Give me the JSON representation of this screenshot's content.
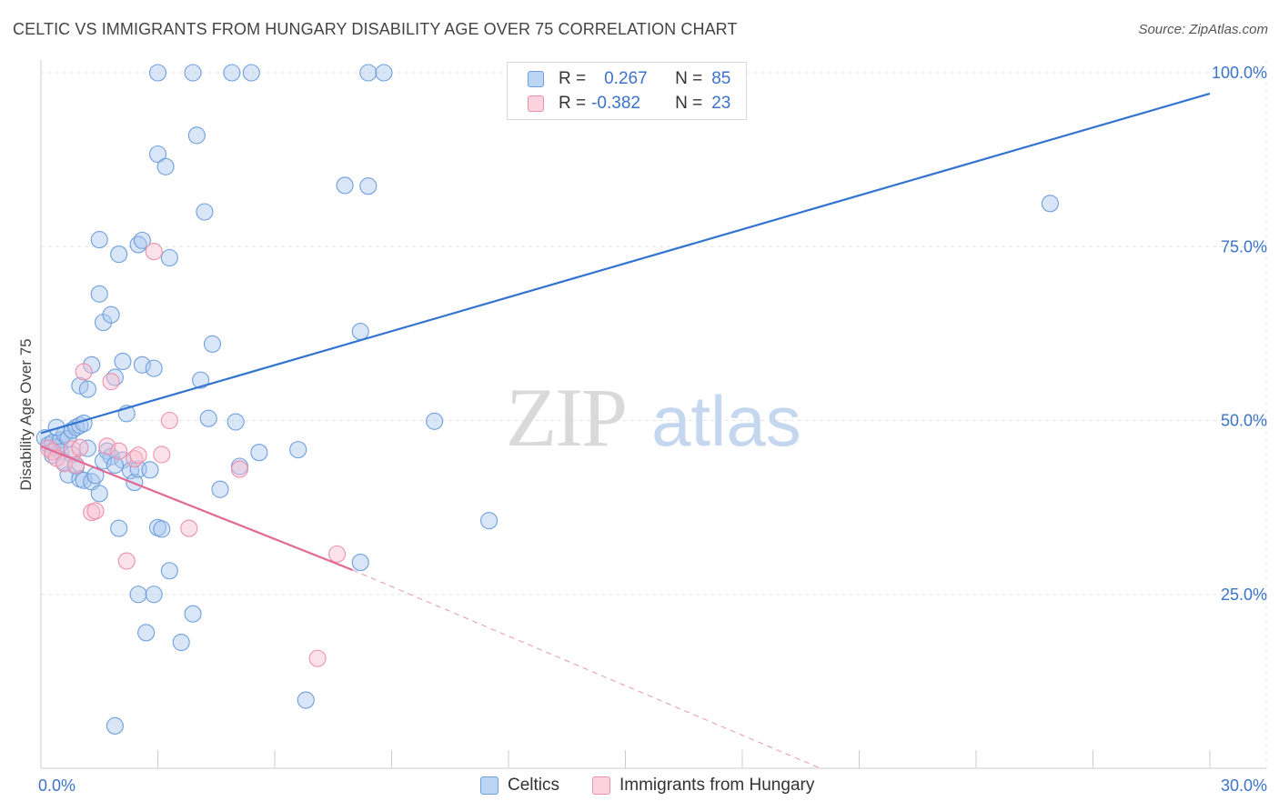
{
  "title": "CELTIC VS IMMIGRANTS FROM HUNGARY DISABILITY AGE OVER 75 CORRELATION CHART",
  "source": "Source: ZipAtlas.com",
  "watermark": {
    "zip": "ZIP",
    "atlas": "atlas"
  },
  "colors": {
    "blue_fill": "#a8c8f0",
    "blue_stroke": "#6f9fdc",
    "blue_line": "#3374d0",
    "pink_fill": "#f7bfd0",
    "pink_stroke": "#ee8fab",
    "pink_line": "#e06a94",
    "grid": "#e4e4e4",
    "tick_label": "#3b73c9"
  },
  "legend": {
    "rows": [
      {
        "r_label": "R =",
        "r_value": "0.267",
        "n_label": "N =",
        "n_value": "85"
      },
      {
        "r_label": "R =",
        "r_value": "-0.382",
        "n_label": "N =",
        "n_value": "23"
      }
    ]
  },
  "bottom_legend": {
    "series1": "Celtics",
    "series2": "Immigrants from Hungary"
  },
  "chart_data": {
    "type": "scatter",
    "title": "CELTIC VS IMMIGRANTS FROM HUNGARY DISABILITY AGE OVER 75 CORRELATION CHART",
    "xlabel": "",
    "ylabel": "Disability Age Over 75",
    "xlim": [
      0,
      30
    ],
    "ylim": [
      0,
      105
    ],
    "x_tick_labels": [
      "0.0%",
      "30.0%"
    ],
    "y_ticks": [
      25,
      50,
      75,
      100
    ],
    "y_tick_labels": [
      "25.0%",
      "50.0%",
      "75.0%",
      "100.0%"
    ],
    "grid": true,
    "series": [
      {
        "name": "Celtics",
        "R": 0.267,
        "N": 85,
        "trend": {
          "x": [
            0,
            30
          ],
          "y": [
            48.2,
            97.0
          ],
          "dashed_extension": false
        },
        "points": [
          [
            0.1,
            47.5
          ],
          [
            0.2,
            46.5
          ],
          [
            0.3,
            46.8
          ],
          [
            0.4,
            46.2
          ],
          [
            0.5,
            47.2
          ],
          [
            0.6,
            48.0
          ],
          [
            0.7,
            47.4
          ],
          [
            0.8,
            48.6
          ],
          [
            0.9,
            49.0
          ],
          [
            1.0,
            49.3
          ],
          [
            1.1,
            49.6
          ],
          [
            0.5,
            45.5
          ],
          [
            0.8,
            45.1
          ],
          [
            0.9,
            43.4
          ],
          [
            0.7,
            42.2
          ],
          [
            1.0,
            41.6
          ],
          [
            1.1,
            41.4
          ],
          [
            1.3,
            41.2
          ],
          [
            1.4,
            42.1
          ],
          [
            1.5,
            39.5
          ],
          [
            1.7,
            45.6
          ],
          [
            1.8,
            44.8
          ],
          [
            2.1,
            44.3
          ],
          [
            2.3,
            42.8
          ],
          [
            2.4,
            41.1
          ],
          [
            2.5,
            43.0
          ],
          [
            1.0,
            55.0
          ],
          [
            1.2,
            54.5
          ],
          [
            1.3,
            58.0
          ],
          [
            1.9,
            56.2
          ],
          [
            2.1,
            58.5
          ],
          [
            2.6,
            58.0
          ],
          [
            2.9,
            57.5
          ],
          [
            2.2,
            51.0
          ],
          [
            1.5,
            68.2
          ],
          [
            1.6,
            64.1
          ],
          [
            1.8,
            65.2
          ],
          [
            1.5,
            76.0
          ],
          [
            2.0,
            73.9
          ],
          [
            2.5,
            75.3
          ],
          [
            2.6,
            75.9
          ],
          [
            3.3,
            73.4
          ],
          [
            3.0,
            88.3
          ],
          [
            3.2,
            86.5
          ],
          [
            4.0,
            91.0
          ],
          [
            4.2,
            80.0
          ],
          [
            3.0,
            100.0
          ],
          [
            3.9,
            100.0
          ],
          [
            4.9,
            100.0
          ],
          [
            5.4,
            100.0
          ],
          [
            8.4,
            100.0
          ],
          [
            8.8,
            100.0
          ],
          [
            7.8,
            83.8
          ],
          [
            8.4,
            83.7
          ],
          [
            4.4,
            61.0
          ],
          [
            4.1,
            55.8
          ],
          [
            4.3,
            50.3
          ],
          [
            5.0,
            49.8
          ],
          [
            5.6,
            45.4
          ],
          [
            6.6,
            45.8
          ],
          [
            5.1,
            43.4
          ],
          [
            4.6,
            40.1
          ],
          [
            2.0,
            34.5
          ],
          [
            3.0,
            34.6
          ],
          [
            3.1,
            34.4
          ],
          [
            3.3,
            28.4
          ],
          [
            2.5,
            25.0
          ],
          [
            2.9,
            25.0
          ],
          [
            2.7,
            19.5
          ],
          [
            3.9,
            22.2
          ],
          [
            3.6,
            18.1
          ],
          [
            1.9,
            6.1
          ],
          [
            6.8,
            9.8
          ],
          [
            8.2,
            29.6
          ],
          [
            10.1,
            49.9
          ],
          [
            11.5,
            35.6
          ],
          [
            8.2,
            62.8
          ],
          [
            25.9,
            81.2
          ],
          [
            1.2,
            46.0
          ],
          [
            1.6,
            44.2
          ],
          [
            1.9,
            43.6
          ],
          [
            2.8,
            42.9
          ],
          [
            0.3,
            45.0
          ],
          [
            0.6,
            44.0
          ],
          [
            0.4,
            49.0
          ]
        ]
      },
      {
        "name": "Immigrants from Hungary",
        "R": -0.382,
        "N": 23,
        "trend": {
          "x": [
            0,
            8.0
          ],
          "y": [
            46.3,
            28.5
          ],
          "dashed_extension": {
            "x": [
              8.0,
              20.0
            ],
            "y": [
              28.5,
              0.0
            ]
          }
        },
        "points": [
          [
            0.2,
            46.0
          ],
          [
            0.3,
            45.5
          ],
          [
            0.4,
            44.6
          ],
          [
            0.6,
            43.8
          ],
          [
            0.8,
            45.9
          ],
          [
            0.9,
            43.6
          ],
          [
            1.0,
            46.1
          ],
          [
            1.1,
            57.0
          ],
          [
            1.3,
            36.8
          ],
          [
            1.4,
            37.0
          ],
          [
            1.7,
            46.3
          ],
          [
            1.8,
            55.6
          ],
          [
            2.0,
            45.6
          ],
          [
            2.4,
            44.5
          ],
          [
            2.5,
            45.0
          ],
          [
            2.9,
            74.3
          ],
          [
            3.1,
            45.1
          ],
          [
            3.3,
            50.0
          ],
          [
            3.8,
            34.5
          ],
          [
            5.1,
            43.0
          ],
          [
            7.6,
            30.8
          ],
          [
            2.2,
            29.8
          ],
          [
            7.1,
            15.8
          ]
        ]
      }
    ]
  }
}
